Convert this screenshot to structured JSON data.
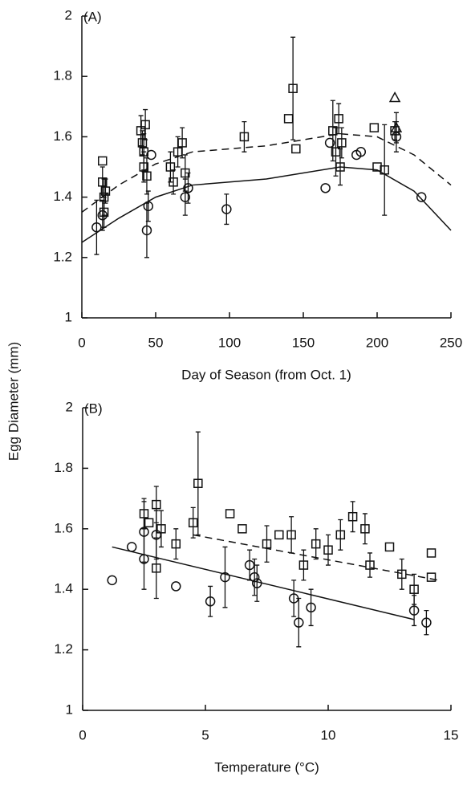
{
  "y_label": "Egg Diameter (mm)",
  "chart_data": [
    {
      "type": "scatter",
      "panel": "(A)",
      "x_label": "Day of Season (from Oct. 1)",
      "xlim": [
        0,
        250
      ],
      "xticks": [
        0,
        50,
        100,
        150,
        200,
        250
      ],
      "ylim": [
        1,
        2
      ],
      "yticks": [
        1,
        1.2,
        1.4,
        1.6,
        1.8,
        2
      ],
      "series": [
        {
          "marker": "square",
          "x": [
            14,
            14,
            15,
            15,
            16,
            40,
            41,
            42,
            42,
            43,
            44,
            60,
            62,
            65,
            68,
            70,
            110,
            140,
            143,
            145,
            170,
            172,
            174,
            175,
            176,
            198,
            200,
            205,
            212
          ],
          "values": [
            1.52,
            1.45,
            1.4,
            1.35,
            1.42,
            1.62,
            1.58,
            1.55,
            1.5,
            1.64,
            1.47,
            1.5,
            1.45,
            1.55,
            1.58,
            1.48,
            1.6,
            1.66,
            1.76,
            1.56,
            1.62,
            1.55,
            1.66,
            1.5,
            1.58,
            1.63,
            1.5,
            1.49,
            1.62
          ],
          "errors": [
            0,
            0.05,
            0.06,
            0.05,
            0.04,
            0.05,
            0.04,
            0.06,
            0.05,
            0.05,
            0.06,
            0.05,
            0.04,
            0.05,
            0.05,
            0.06,
            0.05,
            0,
            0.17,
            0,
            0.1,
            0.08,
            0.05,
            0.06,
            0.05,
            0,
            0,
            0.15,
            0.03
          ]
        },
        {
          "marker": "circle",
          "x": [
            10,
            14,
            44,
            45,
            47,
            70,
            72,
            98,
            165,
            168,
            186,
            189,
            213,
            230
          ],
          "values": [
            1.3,
            1.34,
            1.29,
            1.37,
            1.54,
            1.4,
            1.43,
            1.36,
            1.43,
            1.58,
            1.54,
            1.55,
            1.6,
            1.4
          ],
          "errors": [
            0.09,
            0.05,
            0.09,
            0.05,
            0,
            0.06,
            0.05,
            0.05,
            0,
            0,
            0,
            0,
            0.05,
            0
          ]
        },
        {
          "marker": "triangle",
          "x": [
            212,
            213
          ],
          "values": [
            1.73,
            1.63
          ],
          "errors": [
            0,
            0.05
          ]
        }
      ],
      "curves": [
        {
          "dash": true,
          "x": [
            0,
            25,
            50,
            75,
            100,
            125,
            150,
            175,
            200,
            225,
            250
          ],
          "values": [
            1.35,
            1.44,
            1.51,
            1.55,
            1.56,
            1.57,
            1.59,
            1.61,
            1.6,
            1.54,
            1.44
          ]
        },
        {
          "dash": false,
          "x": [
            0,
            25,
            50,
            75,
            100,
            125,
            150,
            175,
            200,
            225,
            250
          ],
          "values": [
            1.25,
            1.33,
            1.4,
            1.44,
            1.45,
            1.46,
            1.48,
            1.5,
            1.49,
            1.42,
            1.29
          ]
        }
      ]
    },
    {
      "type": "scatter",
      "panel": "(B)",
      "x_label": "Temperature (°C)",
      "xlim": [
        0,
        15
      ],
      "xticks": [
        0,
        5,
        10,
        15
      ],
      "ylim": [
        1,
        2
      ],
      "yticks": [
        1,
        1.2,
        1.4,
        1.6,
        1.8,
        2
      ],
      "series": [
        {
          "marker": "square",
          "x": [
            2.5,
            2.7,
            3.0,
            3.0,
            3.2,
            3.8,
            4.5,
            4.7,
            6.0,
            6.5,
            7.5,
            8.0,
            8.5,
            9.0,
            9.5,
            10,
            10.5,
            11,
            11.5,
            11.7,
            12.5,
            13,
            13.5,
            14.2,
            14.2
          ],
          "values": [
            1.65,
            1.62,
            1.68,
            1.47,
            1.6,
            1.55,
            1.62,
            1.75,
            1.65,
            1.6,
            1.55,
            1.58,
            1.58,
            1.48,
            1.55,
            1.53,
            1.58,
            1.64,
            1.6,
            1.48,
            1.54,
            1.45,
            1.4,
            1.52,
            1.44
          ],
          "errors": [
            0.05,
            0,
            0.06,
            0.1,
            0.06,
            0.05,
            0.05,
            0.17,
            0,
            0,
            0.06,
            0,
            0.06,
            0.05,
            0.05,
            0.05,
            0.05,
            0.05,
            0.05,
            0.04,
            0,
            0.05,
            0.05,
            0,
            0
          ]
        },
        {
          "marker": "circle",
          "x": [
            1.2,
            2.0,
            2.5,
            2.5,
            3.0,
            3.8,
            5.2,
            5.8,
            6.8,
            7.0,
            7.1,
            8.6,
            8.8,
            9.3,
            13.5,
            14
          ],
          "values": [
            1.43,
            1.54,
            1.59,
            1.5,
            1.58,
            1.41,
            1.36,
            1.44,
            1.48,
            1.44,
            1.42,
            1.37,
            1.29,
            1.34,
            1.33,
            1.29
          ],
          "errors": [
            0,
            0,
            0.1,
            0.1,
            0.08,
            0,
            0.05,
            0.1,
            0.05,
            0.06,
            0.06,
            0.06,
            0.08,
            0.06,
            0.05,
            0.04
          ]
        }
      ],
      "curves": [
        {
          "dash": true,
          "x": [
            4.5,
            14.5
          ],
          "values": [
            1.58,
            1.43
          ]
        },
        {
          "dash": false,
          "x": [
            1.2,
            13.5
          ],
          "values": [
            1.54,
            1.3
          ]
        }
      ]
    }
  ]
}
